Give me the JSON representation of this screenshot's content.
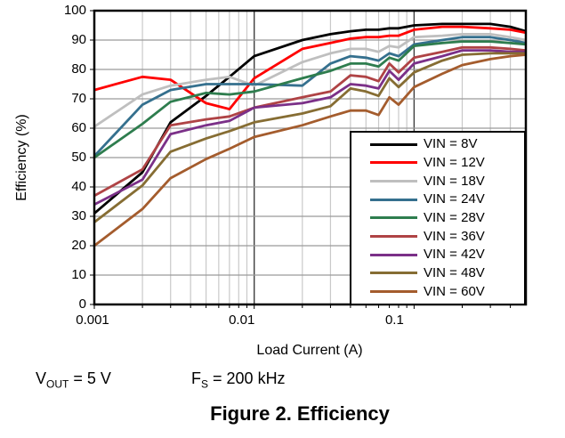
{
  "figure": {
    "caption": "Figure 2. Efficiency"
  },
  "annotations": {
    "vout": {
      "base": "V",
      "sub": "OUT",
      "rest": " = 5 V"
    },
    "fs": {
      "base": "F",
      "sub": "S",
      "rest": " = 200 kHz"
    }
  },
  "chart_data": {
    "type": "line",
    "title": "",
    "xlabel": "Load Current (A)",
    "ylabel": "Efficiency (%)",
    "x_scale": "log",
    "xlim": [
      0.001,
      0.5
    ],
    "ylim": [
      0,
      100
    ],
    "x_ticks": [
      0.001,
      0.01,
      0.1
    ],
    "x_tick_labels": [
      "0.001",
      "0.01",
      "0.1"
    ],
    "y_ticks": [
      0,
      10,
      20,
      30,
      40,
      50,
      60,
      70,
      80,
      90,
      100
    ],
    "grid": true,
    "legend_position": "lower right",
    "colors": {
      "grid_minor": "#c9c9c9",
      "grid_major_vertical": "#3f3f3f",
      "grid_horizontal": "#9a9a9a",
      "frame": "#000000"
    },
    "x": [
      0.001,
      0.002,
      0.003,
      0.005,
      0.007,
      0.01,
      0.02,
      0.03,
      0.04,
      0.05,
      0.06,
      0.07,
      0.08,
      0.1,
      0.15,
      0.2,
      0.3,
      0.4,
      0.5
    ],
    "series": [
      {
        "name": "VIN = 8V",
        "color": "#000000",
        "values": [
          31,
          45,
          62,
          71,
          77.5,
          84.5,
          90,
          92,
          93,
          93.5,
          93.5,
          94,
          94,
          95,
          95.5,
          95.5,
          95.5,
          94.5,
          93
        ]
      },
      {
        "name": "VIN = 12V",
        "color": "#ff0000",
        "values": [
          73,
          77.5,
          76.5,
          68.5,
          66.5,
          77,
          87,
          89,
          90.5,
          91,
          91,
          91.5,
          91.5,
          93.5,
          94.5,
          94.5,
          94,
          93.5,
          92.5
        ]
      },
      {
        "name": "VIN = 18V",
        "color": "#bfbfbf",
        "values": [
          60.5,
          71.5,
          74.5,
          76.5,
          77.5,
          74.5,
          82.5,
          85.5,
          87,
          87,
          86,
          88,
          87.5,
          91,
          91.5,
          92,
          92,
          91,
          90
        ]
      },
      {
        "name": "VIN = 24V",
        "color": "#35708e",
        "values": [
          50.5,
          68,
          73,
          75,
          75,
          75,
          74.5,
          82,
          84.5,
          84,
          83,
          85.5,
          84.5,
          88.5,
          90,
          91,
          91,
          90,
          89
        ]
      },
      {
        "name": "VIN = 28V",
        "color": "#2e7d4e",
        "values": [
          50,
          61.5,
          69,
          72,
          71.5,
          72.5,
          77,
          79.5,
          82,
          82,
          81,
          84,
          83,
          88,
          89,
          89.5,
          89.5,
          89,
          88.5
        ]
      },
      {
        "name": "VIN = 36V",
        "color": "#af4345",
        "values": [
          37,
          46,
          61,
          63,
          64,
          67,
          70.5,
          72.5,
          78,
          77.5,
          76,
          82,
          79,
          84,
          86,
          87.5,
          87.5,
          87,
          86.5
        ]
      },
      {
        "name": "VIN = 42V",
        "color": "#7b3088",
        "values": [
          34,
          42.5,
          58,
          61,
          62.5,
          67,
          68.5,
          70.5,
          75,
          74.5,
          73.5,
          79.5,
          76.5,
          82,
          84.5,
          86.5,
          86.5,
          86,
          86
        ]
      },
      {
        "name": "VIN = 48V",
        "color": "#866d33",
        "values": [
          28,
          40.5,
          52,
          56.5,
          59,
          62,
          65,
          67.5,
          73.5,
          72.5,
          71,
          77,
          74,
          79,
          83,
          85,
          85.5,
          85.5,
          85.5
        ]
      },
      {
        "name": "VIN = 60V",
        "color": "#a45c2d",
        "values": [
          20,
          32.5,
          43,
          49.5,
          53,
          57,
          61,
          64,
          66,
          66,
          64.5,
          70.5,
          68,
          74,
          78.5,
          81.5,
          83.5,
          84.5,
          85
        ]
      }
    ]
  }
}
